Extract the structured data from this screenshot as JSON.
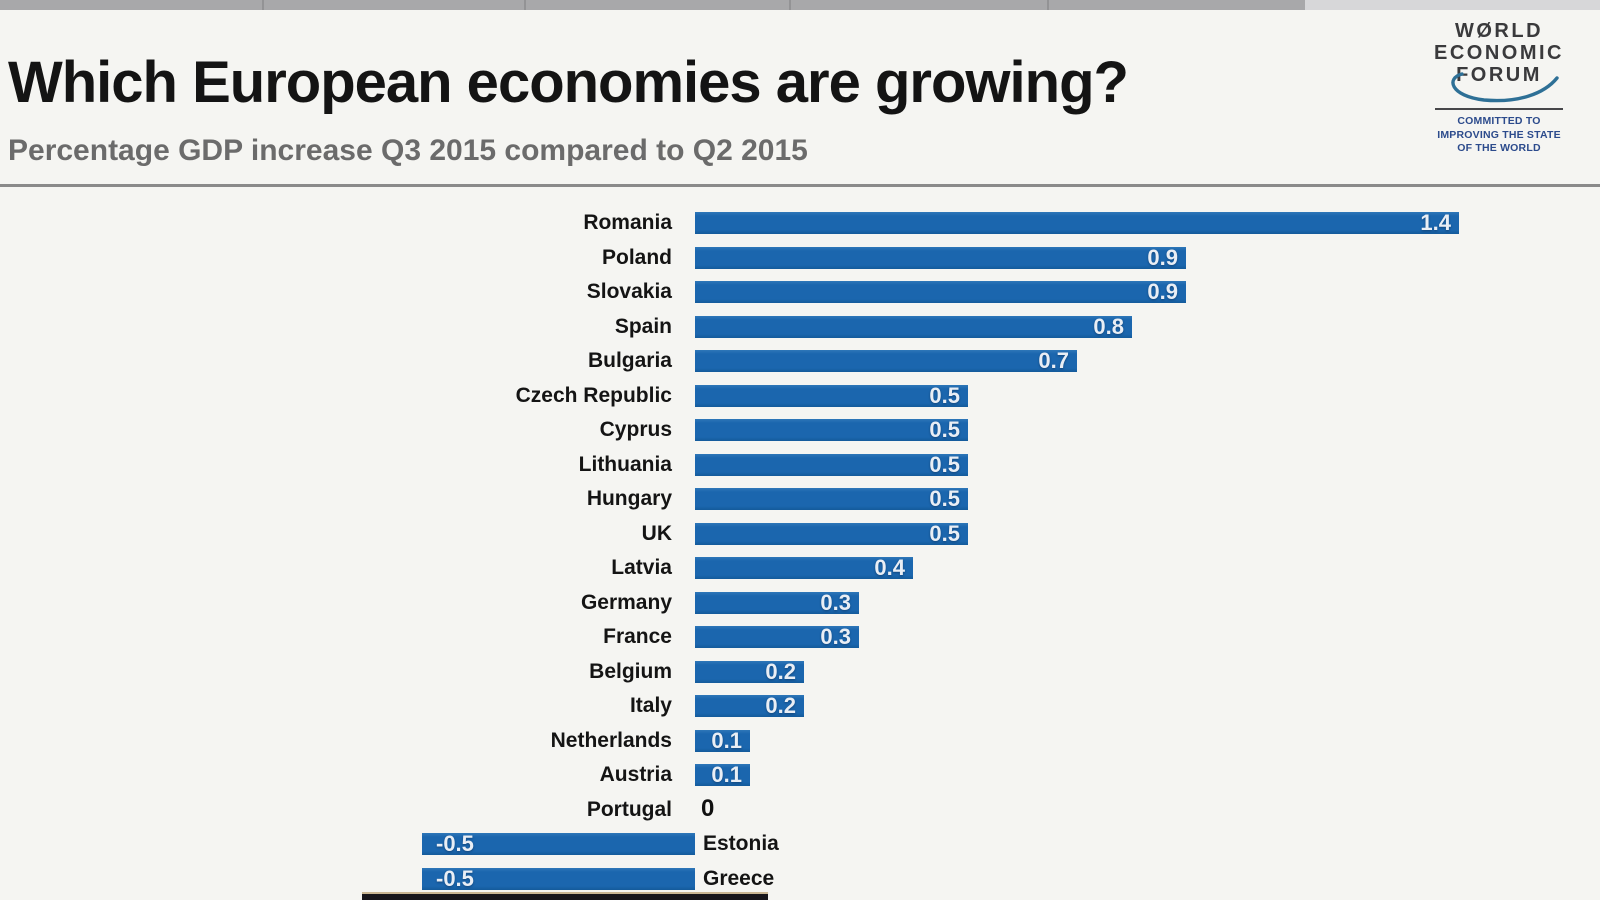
{
  "header": {
    "title": "Which European economies are growing?",
    "subtitle": "Percentage GDP increase Q3 2015 compared to Q2 2015"
  },
  "logo": {
    "lines": [
      "WØRLD",
      "ECONOMIC",
      "FORUM"
    ],
    "tagline_lines": [
      "COMMITTED TO",
      "IMPROVING THE STATE",
      "OF THE WORLD"
    ],
    "swoosh_color": "#2e7096",
    "tagline_color": "#2c4b8c"
  },
  "chart_data": {
    "type": "bar",
    "orientation": "horizontal",
    "title": "Which European economies are growing?",
    "subtitle": "Percentage GDP increase Q3 2015 compared to Q2 2015",
    "unit": "percent GDP growth, quarter on quarter",
    "categories": [
      "Romania",
      "Poland",
      "Slovakia",
      "Spain",
      "Bulgaria",
      "Czech Republic",
      "Cyprus",
      "Lithuania",
      "Hungary",
      "UK",
      "Latvia",
      "Germany",
      "France",
      "Belgium",
      "Italy",
      "Netherlands",
      "Austria",
      "Portugal",
      "Estonia",
      "Greece"
    ],
    "values": [
      1.4,
      0.9,
      0.9,
      0.8,
      0.7,
      0.5,
      0.5,
      0.5,
      0.5,
      0.5,
      0.4,
      0.3,
      0.3,
      0.2,
      0.2,
      0.1,
      0.1,
      0,
      -0.5,
      -0.5
    ],
    "value_labels": [
      "1.4",
      "0.9",
      "0.9",
      "0.8",
      "0.7",
      "0.5",
      "0.5",
      "0.5",
      "0.5",
      "0.5",
      "0.4",
      "0.3",
      "0.3",
      "0.2",
      "0.2",
      "0.1",
      "0.1",
      "0",
      "-0.5",
      "-0.5"
    ],
    "bar_color": "#1b66ae",
    "value_label_color": "#e9eef5",
    "category_label_color": "#141414",
    "xlim": [
      -0.6,
      1.5
    ],
    "grid": false,
    "legend": false,
    "value_labels_position": "inside-end"
  }
}
